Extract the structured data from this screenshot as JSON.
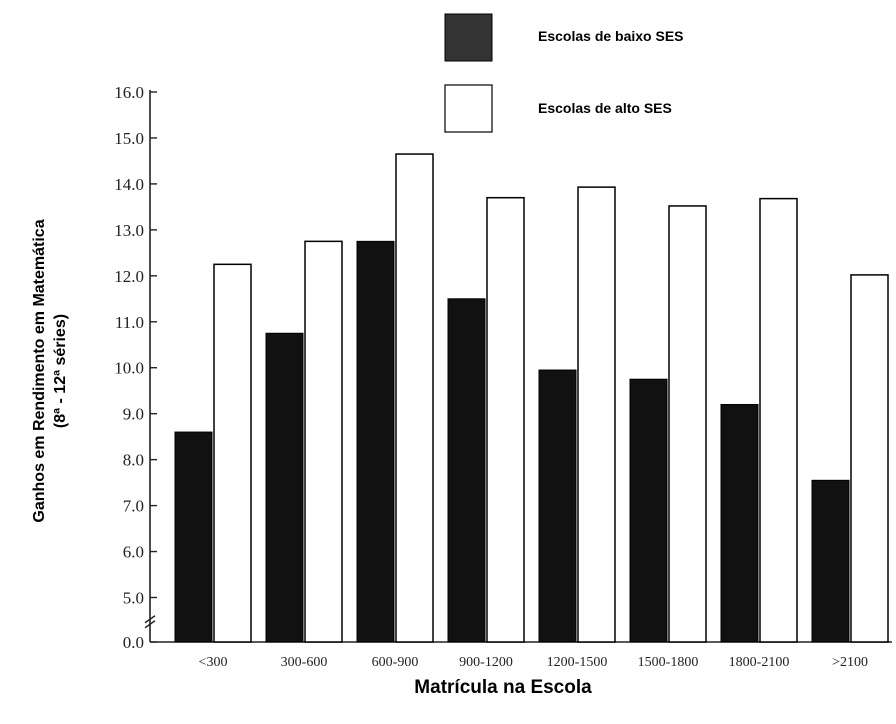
{
  "chart_data": {
    "type": "bar",
    "title": "",
    "xlabel": "Matrícula na Escola",
    "ylabel_line1": "Ganhos em Rendimento em Matemática",
    "ylabel_line2": "(8ª - 12ª séries)",
    "categories": [
      "<300",
      "300-600",
      "600-900",
      "900-1200",
      "1200-1500",
      "1500-1800",
      "1800-2100",
      ">2100"
    ],
    "y_ticks": [
      "0.0",
      "5.0",
      "6.0",
      "7.0",
      "8.0",
      "9.0",
      "10.0",
      "11.0",
      "12.0",
      "13.0",
      "14.0",
      "15.0",
      "16.0"
    ],
    "y_axis_break": true,
    "ylim": [
      0,
      16
    ],
    "series": [
      {
        "name": "Escolas de baixo SES",
        "color": "#111111",
        "values": [
          8.6,
          10.75,
          12.75,
          11.5,
          9.95,
          9.75,
          9.2,
          7.55
        ]
      },
      {
        "name": "Escolas de alto SES",
        "color": "#ffffff",
        "values": [
          12.25,
          12.75,
          14.65,
          13.7,
          13.93,
          13.52,
          13.68,
          12.02
        ]
      }
    ],
    "legend_position": "top-right",
    "grid": false
  }
}
